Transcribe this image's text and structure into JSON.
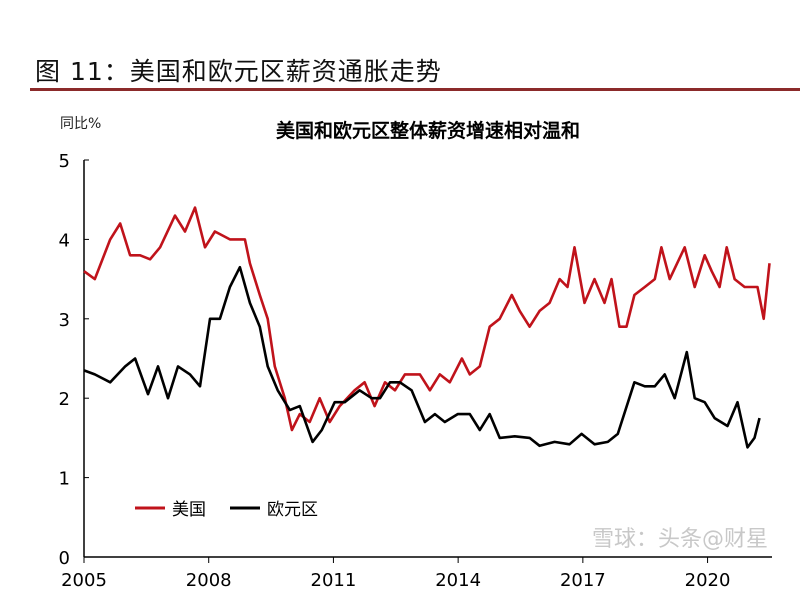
{
  "figure_title": "图 11：美国和欧元区薪资通胀走势",
  "watermark": "雪球：头条@财星",
  "chart_data": {
    "type": "line",
    "title": "美国和欧元区整体薪资增速相对温和",
    "ylabel": "同比%",
    "xlabel": "",
    "xlim": [
      2005,
      2021.55
    ],
    "ylim": [
      0,
      5
    ],
    "xticks": [
      "2005",
      "2008",
      "2011",
      "2014",
      "2017",
      "2020"
    ],
    "yticks": [
      "0",
      "1",
      "2",
      "3",
      "4",
      "5"
    ],
    "grid": false,
    "legend": "bottom-left",
    "series": [
      {
        "name": "美国",
        "color": "#c0131b",
        "points": [
          [
            2005.0,
            3.6
          ],
          [
            2005.26,
            3.5
          ],
          [
            2005.63,
            4.0
          ],
          [
            2005.87,
            4.2
          ],
          [
            2006.11,
            3.8
          ],
          [
            2006.35,
            3.8
          ],
          [
            2006.59,
            3.75
          ],
          [
            2006.83,
            3.9
          ],
          [
            2007.19,
            4.3
          ],
          [
            2007.43,
            4.1
          ],
          [
            2007.67,
            4.4
          ],
          [
            2007.91,
            3.9
          ],
          [
            2008.15,
            4.1
          ],
          [
            2008.51,
            4.0
          ],
          [
            2008.87,
            4.0
          ],
          [
            2008.99,
            3.7
          ],
          [
            2009.23,
            3.3
          ],
          [
            2009.42,
            3.0
          ],
          [
            2009.59,
            2.4
          ],
          [
            2009.83,
            2.0
          ],
          [
            2010.0,
            1.6
          ],
          [
            2010.19,
            1.8
          ],
          [
            2010.43,
            1.7
          ],
          [
            2010.67,
            2.0
          ],
          [
            2010.91,
            1.7
          ],
          [
            2011.15,
            1.9
          ],
          [
            2011.51,
            2.1
          ],
          [
            2011.75,
            2.2
          ],
          [
            2011.99,
            1.9
          ],
          [
            2012.24,
            2.2
          ],
          [
            2012.48,
            2.1
          ],
          [
            2012.72,
            2.3
          ],
          [
            2013.08,
            2.3
          ],
          [
            2013.32,
            2.1
          ],
          [
            2013.56,
            2.3
          ],
          [
            2013.8,
            2.2
          ],
          [
            2014.09,
            2.5
          ],
          [
            2014.28,
            2.3
          ],
          [
            2014.52,
            2.4
          ],
          [
            2014.76,
            2.9
          ],
          [
            2015.0,
            3.0
          ],
          [
            2015.29,
            3.3
          ],
          [
            2015.48,
            3.1
          ],
          [
            2015.72,
            2.9
          ],
          [
            2015.96,
            3.1
          ],
          [
            2016.2,
            3.2
          ],
          [
            2016.44,
            3.5
          ],
          [
            2016.63,
            3.4
          ],
          [
            2016.8,
            3.9
          ],
          [
            2017.04,
            3.2
          ],
          [
            2017.28,
            3.5
          ],
          [
            2017.52,
            3.2
          ],
          [
            2017.69,
            3.5
          ],
          [
            2017.88,
            2.9
          ],
          [
            2018.05,
            2.9
          ],
          [
            2018.24,
            3.3
          ],
          [
            2018.49,
            3.4
          ],
          [
            2018.73,
            3.5
          ],
          [
            2018.89,
            3.9
          ],
          [
            2019.09,
            3.5
          ],
          [
            2019.45,
            3.9
          ],
          [
            2019.69,
            3.4
          ],
          [
            2019.93,
            3.8
          ],
          [
            2020.1,
            3.6
          ],
          [
            2020.29,
            3.4
          ],
          [
            2020.46,
            3.9
          ],
          [
            2020.65,
            3.5
          ],
          [
            2020.89,
            3.4
          ],
          [
            2021.06,
            3.4
          ],
          [
            2021.2,
            3.4
          ],
          [
            2021.35,
            3.0
          ],
          [
            2021.49,
            3.7
          ]
        ]
      },
      {
        "name": "欧元区",
        "color": "#000000",
        "points": [
          [
            2005.0,
            2.35
          ],
          [
            2005.26,
            2.3
          ],
          [
            2005.63,
            2.2
          ],
          [
            2005.99,
            2.4
          ],
          [
            2006.23,
            2.5
          ],
          [
            2006.54,
            2.05
          ],
          [
            2006.78,
            2.4
          ],
          [
            2007.02,
            2.0
          ],
          [
            2007.26,
            2.4
          ],
          [
            2007.55,
            2.3
          ],
          [
            2007.79,
            2.15
          ],
          [
            2008.03,
            3.0
          ],
          [
            2008.27,
            3.0
          ],
          [
            2008.51,
            3.4
          ],
          [
            2008.75,
            3.65
          ],
          [
            2008.99,
            3.2
          ],
          [
            2009.23,
            2.9
          ],
          [
            2009.42,
            2.4
          ],
          [
            2009.66,
            2.1
          ],
          [
            2009.95,
            1.85
          ],
          [
            2010.19,
            1.9
          ],
          [
            2010.5,
            1.45
          ],
          [
            2010.72,
            1.6
          ],
          [
            2011.03,
            1.95
          ],
          [
            2011.27,
            1.95
          ],
          [
            2011.63,
            2.1
          ],
          [
            2011.92,
            2.0
          ],
          [
            2012.12,
            2.0
          ],
          [
            2012.36,
            2.2
          ],
          [
            2012.6,
            2.2
          ],
          [
            2012.88,
            2.1
          ],
          [
            2013.2,
            1.7
          ],
          [
            2013.44,
            1.8
          ],
          [
            2013.68,
            1.7
          ],
          [
            2013.99,
            1.8
          ],
          [
            2014.28,
            1.8
          ],
          [
            2014.52,
            1.6
          ],
          [
            2014.76,
            1.8
          ],
          [
            2015.0,
            1.5
          ],
          [
            2015.36,
            1.52
          ],
          [
            2015.72,
            1.5
          ],
          [
            2015.96,
            1.4
          ],
          [
            2016.32,
            1.45
          ],
          [
            2016.68,
            1.42
          ],
          [
            2016.97,
            1.55
          ],
          [
            2017.28,
            1.42
          ],
          [
            2017.6,
            1.45
          ],
          [
            2017.84,
            1.55
          ],
          [
            2018.24,
            2.2
          ],
          [
            2018.49,
            2.15
          ],
          [
            2018.73,
            2.15
          ],
          [
            2018.97,
            2.3
          ],
          [
            2019.21,
            2.0
          ],
          [
            2019.5,
            2.58
          ],
          [
            2019.69,
            2.0
          ],
          [
            2019.93,
            1.95
          ],
          [
            2020.17,
            1.75
          ],
          [
            2020.48,
            1.65
          ],
          [
            2020.72,
            1.95
          ],
          [
            2020.96,
            1.38
          ],
          [
            2021.13,
            1.5
          ],
          [
            2021.25,
            1.75
          ]
        ]
      }
    ]
  }
}
